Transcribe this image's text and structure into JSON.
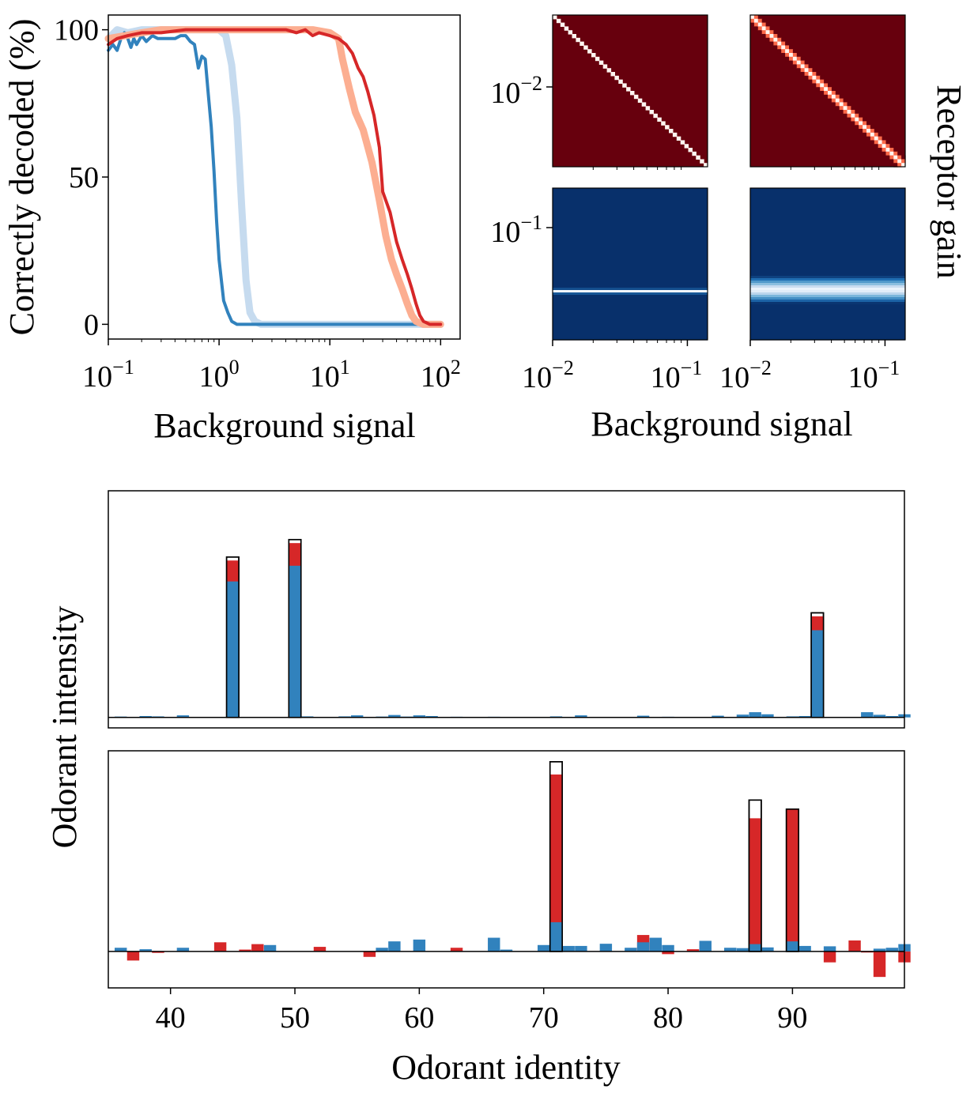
{
  "colors": {
    "blue_dark": "#3182bd",
    "blue_light": "#c6dbef",
    "red_dark": "#d62728",
    "red_light": "#fcae91",
    "heat_red_bg": "#67000d",
    "heat_blue_bg": "#08306b",
    "true_bar_fill": "#ffffff",
    "outline": "#000000"
  },
  "chart_data": [
    {
      "id": "decoding-curve",
      "type": "line",
      "xlabel": "Background signal",
      "ylabel": "Correctly decoded (%)",
      "xscale": "log",
      "xlim": [
        0.1,
        150
      ],
      "ylim": [
        -5,
        105
      ],
      "x_ticks": [
        {
          "value": 0.1,
          "base": "10",
          "exp": "−1"
        },
        {
          "value": 1,
          "base": "10",
          "exp": "0"
        },
        {
          "value": 10,
          "base": "10",
          "exp": "1"
        },
        {
          "value": 100,
          "base": "10",
          "exp": "2"
        }
      ],
      "y_ticks": [
        {
          "value": 0,
          "label": "0"
        },
        {
          "value": 50,
          "label": "50"
        },
        {
          "value": 100,
          "label": "100"
        }
      ],
      "grid": false,
      "series": [
        {
          "color_key": "blue_light",
          "width": 9,
          "x": [
            0.1,
            0.12,
            0.15,
            0.2,
            0.3,
            0.5,
            0.8,
            1.0,
            1.15,
            1.3,
            1.45,
            1.6,
            1.75,
            1.9,
            2.1,
            2.4,
            3,
            10,
            100
          ],
          "y": [
            97,
            100,
            99,
            100,
            100,
            100,
            100,
            100,
            98,
            88,
            70,
            40,
            15,
            4,
            1,
            0,
            0,
            0,
            0
          ]
        },
        {
          "color_key": "blue_dark",
          "width": 4,
          "x": [
            0.1,
            0.11,
            0.12,
            0.13,
            0.14,
            0.15,
            0.16,
            0.17,
            0.18,
            0.2,
            0.22,
            0.25,
            0.28,
            0.32,
            0.36,
            0.4,
            0.45,
            0.5,
            0.55,
            0.6,
            0.65,
            0.7,
            0.75,
            0.8,
            0.85,
            0.9,
            0.95,
            1.0,
            1.1,
            1.2,
            1.3,
            1.45,
            1.6,
            1.8,
            2.0,
            3,
            10,
            100
          ],
          "y": [
            93,
            95,
            93,
            97,
            99,
            97,
            94,
            97,
            95,
            98,
            96,
            98,
            97,
            97,
            97,
            97,
            98,
            98,
            96,
            95,
            87,
            91,
            90,
            78,
            67,
            52,
            35,
            22,
            8,
            4,
            1,
            0,
            0,
            0,
            0,
            0,
            0,
            0
          ]
        },
        {
          "color_key": "red_light",
          "width": 9,
          "x": [
            0.1,
            0.2,
            0.3,
            0.5,
            1,
            2,
            3,
            5,
            7,
            10,
            12,
            13,
            15,
            17,
            20,
            24,
            28,
            32,
            36,
            40,
            45,
            50,
            55,
            60,
            70,
            80,
            100
          ],
          "y": [
            97,
            99,
            100,
            100,
            100,
            100,
            100,
            100,
            100,
            99,
            97,
            90,
            80,
            72,
            66,
            55,
            42,
            30,
            22,
            17,
            12,
            7,
            3,
            1,
            0,
            0,
            0
          ]
        },
        {
          "color_key": "red_dark",
          "width": 4,
          "x": [
            0.1,
            0.12,
            0.15,
            0.2,
            0.3,
            0.5,
            1,
            2,
            3,
            4,
            5,
            6,
            7,
            8,
            10,
            12,
            14,
            16,
            18,
            20,
            22,
            25,
            28,
            30,
            35,
            40,
            45,
            50,
            55,
            60,
            65,
            70,
            80,
            90,
            100
          ],
          "y": [
            95,
            97,
            98,
            99,
            99,
            100,
            100,
            100,
            100,
            100,
            99,
            100,
            98,
            99,
            98,
            97,
            95,
            92,
            87,
            84,
            79,
            71,
            60,
            45,
            38,
            28,
            22,
            17,
            12,
            7,
            3,
            1,
            0,
            0,
            0
          ]
        }
      ]
    },
    {
      "id": "gain-heatmaps",
      "type": "heatmap",
      "xlabel": "Background signal",
      "ylabel": "Receptor gain",
      "xscale": "log",
      "yscale": "log",
      "x_ticks": [
        {
          "value": 0.01,
          "base": "10",
          "exp": "−2"
        },
        {
          "value": 0.1,
          "base": "10",
          "exp": "−1"
        }
      ],
      "y_ticks_top": [
        {
          "value": 0.01,
          "base": "10",
          "exp": "−2"
        }
      ],
      "y_ticks_bottom": [
        {
          "value": 0.1,
          "base": "10",
          "exp": "−1"
        }
      ],
      "panels": [
        {
          "id": "top-left",
          "colormap": "reds",
          "pattern": "diagonal",
          "band_halfwidth": 0.012
        },
        {
          "id": "top-right",
          "colormap": "reds",
          "pattern": "diagonal",
          "band_halfwidth": 0.05
        },
        {
          "id": "bottom-left",
          "colormap": "blues",
          "pattern": "horizontal",
          "band_center": 0.68,
          "band_halfwidth": 0.018
        },
        {
          "id": "bottom-right",
          "colormap": "blues",
          "pattern": "horizontal",
          "band_center": 0.67,
          "band_halfwidth": 0.09
        }
      ]
    },
    {
      "id": "odorant-bars",
      "type": "bar",
      "xlabel": "Odorant identity",
      "ylabel": "Odorant intensity",
      "xlim": [
        35,
        99
      ],
      "x_ticks": [
        40,
        50,
        60,
        70,
        80,
        90
      ],
      "panels": [
        {
          "id": "top",
          "ylim": [
            -0.06,
            1.3
          ],
          "true": [
            {
              "x": 45,
              "h": 0.92
            },
            {
              "x": 50,
              "h": 1.02
            },
            {
              "x": 92,
              "h": 0.6
            }
          ],
          "red": [
            {
              "x": 45,
              "h": 0.9
            },
            {
              "x": 50,
              "h": 1.0
            },
            {
              "x": 92,
              "h": 0.58
            }
          ],
          "blue": [
            {
              "x": 36,
              "h": 0.005
            },
            {
              "x": 38,
              "h": 0.008
            },
            {
              "x": 39,
              "h": 0.006
            },
            {
              "x": 41,
              "h": 0.012
            },
            {
              "x": 45,
              "h": 0.78
            },
            {
              "x": 50,
              "h": 0.87
            },
            {
              "x": 51,
              "h": 0.006
            },
            {
              "x": 54,
              "h": 0.006
            },
            {
              "x": 55,
              "h": 0.012
            },
            {
              "x": 57,
              "h": 0.005
            },
            {
              "x": 58,
              "h": 0.014
            },
            {
              "x": 59,
              "h": 0.005
            },
            {
              "x": 60,
              "h": 0.012
            },
            {
              "x": 61,
              "h": 0.008
            },
            {
              "x": 63,
              "h": 0.004
            },
            {
              "x": 66,
              "h": 0.004
            },
            {
              "x": 71,
              "h": 0.006
            },
            {
              "x": 73,
              "h": 0.012
            },
            {
              "x": 78,
              "h": 0.01
            },
            {
              "x": 80,
              "h": 0.004
            },
            {
              "x": 84,
              "h": 0.01
            },
            {
              "x": 86,
              "h": 0.016
            },
            {
              "x": 87,
              "h": 0.03
            },
            {
              "x": 88,
              "h": 0.018
            },
            {
              "x": 90,
              "h": 0.006
            },
            {
              "x": 91,
              "h": 0.008
            },
            {
              "x": 92,
              "h": 0.5
            },
            {
              "x": 96,
              "h": 0.03
            },
            {
              "x": 97,
              "h": 0.015
            },
            {
              "x": 98,
              "h": 0.008
            },
            {
              "x": 99,
              "h": 0.018
            }
          ]
        },
        {
          "id": "bottom",
          "ylim": [
            -0.2,
            1.1
          ],
          "true": [
            {
              "x": 71,
              "h": 1.04
            },
            {
              "x": 87,
              "h": 0.83
            },
            {
              "x": 90,
              "h": 0.78
            }
          ],
          "red": [
            {
              "x": 37,
              "h": -0.05
            },
            {
              "x": 39,
              "h": -0.008
            },
            {
              "x": 44,
              "h": 0.05
            },
            {
              "x": 46,
              "h": 0.01
            },
            {
              "x": 47,
              "h": 0.04
            },
            {
              "x": 52,
              "h": 0.025
            },
            {
              "x": 56,
              "h": -0.03
            },
            {
              "x": 63,
              "h": 0.02
            },
            {
              "x": 71,
              "h": 0.97
            },
            {
              "x": 78,
              "h": 0.09
            },
            {
              "x": 80,
              "h": -0.015
            },
            {
              "x": 82,
              "h": 0.012
            },
            {
              "x": 87,
              "h": 0.73
            },
            {
              "x": 90,
              "h": 0.78
            },
            {
              "x": 93,
              "h": -0.06
            },
            {
              "x": 95,
              "h": 0.06
            },
            {
              "x": 96,
              "h": -0.006
            },
            {
              "x": 97,
              "h": -0.14
            },
            {
              "x": 99,
              "h": -0.06
            }
          ],
          "blue": [
            {
              "x": 36,
              "h": 0.02
            },
            {
              "x": 38,
              "h": 0.012
            },
            {
              "x": 41,
              "h": 0.02
            },
            {
              "x": 48,
              "h": 0.035
            },
            {
              "x": 57,
              "h": 0.02
            },
            {
              "x": 58,
              "h": 0.055
            },
            {
              "x": 60,
              "h": 0.065
            },
            {
              "x": 66,
              "h": 0.075
            },
            {
              "x": 67,
              "h": 0.01
            },
            {
              "x": 70,
              "h": 0.035
            },
            {
              "x": 71,
              "h": 0.16
            },
            {
              "x": 72,
              "h": 0.03
            },
            {
              "x": 73,
              "h": 0.03
            },
            {
              "x": 75,
              "h": 0.042
            },
            {
              "x": 77,
              "h": 0.02
            },
            {
              "x": 78,
              "h": 0.05
            },
            {
              "x": 79,
              "h": 0.075
            },
            {
              "x": 80,
              "h": 0.035
            },
            {
              "x": 83,
              "h": 0.058
            },
            {
              "x": 85,
              "h": 0.02
            },
            {
              "x": 86,
              "h": 0.018
            },
            {
              "x": 87,
              "h": 0.04
            },
            {
              "x": 88,
              "h": 0.022
            },
            {
              "x": 90,
              "h": 0.055
            },
            {
              "x": 91,
              "h": 0.03
            },
            {
              "x": 93,
              "h": 0.028
            },
            {
              "x": 97,
              "h": 0.015
            },
            {
              "x": 98,
              "h": 0.02
            },
            {
              "x": 99,
              "h": 0.04
            }
          ]
        }
      ]
    }
  ]
}
